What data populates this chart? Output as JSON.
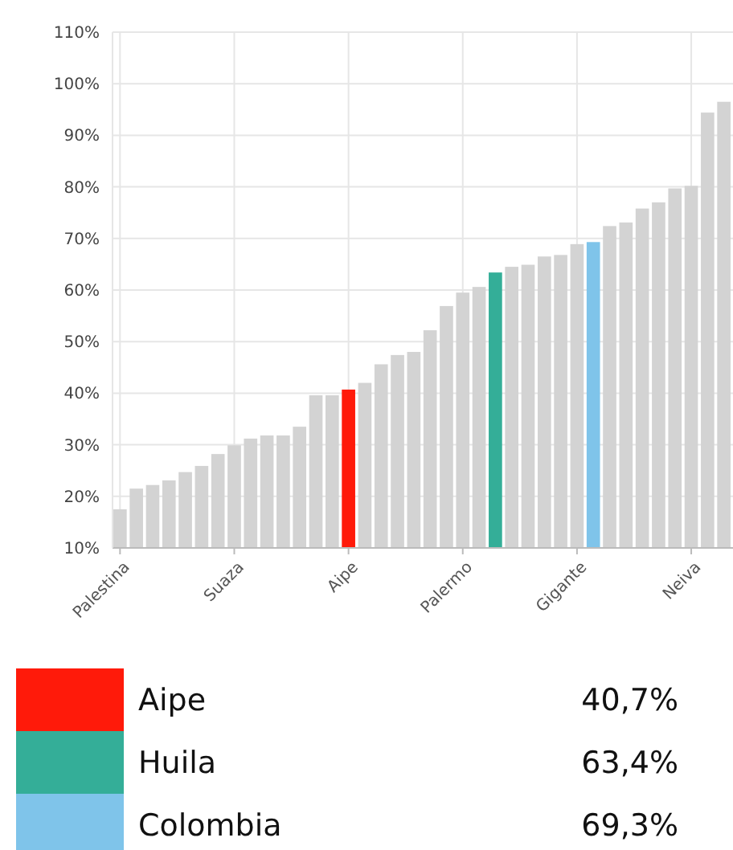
{
  "chart_data": {
    "type": "bar",
    "categories": [
      "Palestina",
      null,
      null,
      null,
      null,
      null,
      null,
      "Suaza",
      null,
      null,
      null,
      null,
      null,
      null,
      "Aipe",
      null,
      null,
      null,
      null,
      null,
      null,
      "Palermo",
      null,
      null,
      null,
      null,
      null,
      null,
      "Gigante",
      null,
      null,
      null,
      null,
      null,
      null,
      "Neiva",
      null,
      null
    ],
    "series": [
      {
        "color": "#d3d3d3",
        "values": [
          17.5,
          21.5,
          22.2,
          23.1,
          24.7,
          25.9,
          28.2,
          29.9,
          31.2,
          31.8,
          31.8,
          33.5,
          39.6,
          39.6,
          null,
          42.0,
          45.6,
          47.4,
          48.0,
          52.2,
          56.9,
          59.5,
          60.6,
          null,
          64.5,
          64.9,
          66.5,
          66.8,
          68.9,
          null,
          72.4,
          73.1,
          75.8,
          77.0,
          79.7,
          80.2,
          94.4,
          96.5
        ]
      },
      {
        "name": "Aipe",
        "color": "#ff1a0a",
        "values": [
          null,
          null,
          null,
          null,
          null,
          null,
          null,
          null,
          null,
          null,
          null,
          null,
          null,
          null,
          40.7,
          null,
          null,
          null,
          null,
          null,
          null,
          null,
          null,
          null,
          null,
          null,
          null,
          null,
          null,
          null,
          null,
          null,
          null,
          null,
          null,
          null,
          null,
          null
        ]
      },
      {
        "name": "Huila",
        "color": "#34ae98",
        "values": [
          null,
          null,
          null,
          null,
          null,
          null,
          null,
          null,
          null,
          null,
          null,
          null,
          null,
          null,
          null,
          null,
          null,
          null,
          null,
          null,
          null,
          null,
          null,
          63.4,
          null,
          null,
          null,
          null,
          null,
          null,
          null,
          null,
          null,
          null,
          null,
          null,
          null,
          null
        ]
      },
      {
        "name": "Colombia",
        "color": "#7fc4ea",
        "values": [
          null,
          null,
          null,
          null,
          null,
          null,
          null,
          null,
          null,
          null,
          null,
          null,
          null,
          null,
          null,
          null,
          null,
          null,
          null,
          null,
          null,
          null,
          null,
          null,
          null,
          null,
          null,
          null,
          null,
          69.3,
          null,
          null,
          null,
          null,
          null,
          null,
          null,
          null
        ]
      }
    ],
    "ylim": [
      10,
      110
    ],
    "yticks": [
      {
        "value": 10,
        "label": "10%"
      },
      {
        "value": 20,
        "label": "20%"
      },
      {
        "value": 30,
        "label": "30%"
      },
      {
        "value": 40,
        "label": "40%"
      },
      {
        "value": 50,
        "label": "50%"
      },
      {
        "value": 60,
        "label": "60%"
      },
      {
        "value": 70,
        "label": "70%"
      },
      {
        "value": 80,
        "label": "80%"
      },
      {
        "value": 90,
        "label": "90%"
      },
      {
        "value": 100,
        "label": "100%"
      },
      {
        "value": 110,
        "label": "110%"
      }
    ],
    "grid": true,
    "legend": "bottom",
    "annotations": [
      "40,7%",
      "63,4%",
      "69,3%"
    ]
  }
}
